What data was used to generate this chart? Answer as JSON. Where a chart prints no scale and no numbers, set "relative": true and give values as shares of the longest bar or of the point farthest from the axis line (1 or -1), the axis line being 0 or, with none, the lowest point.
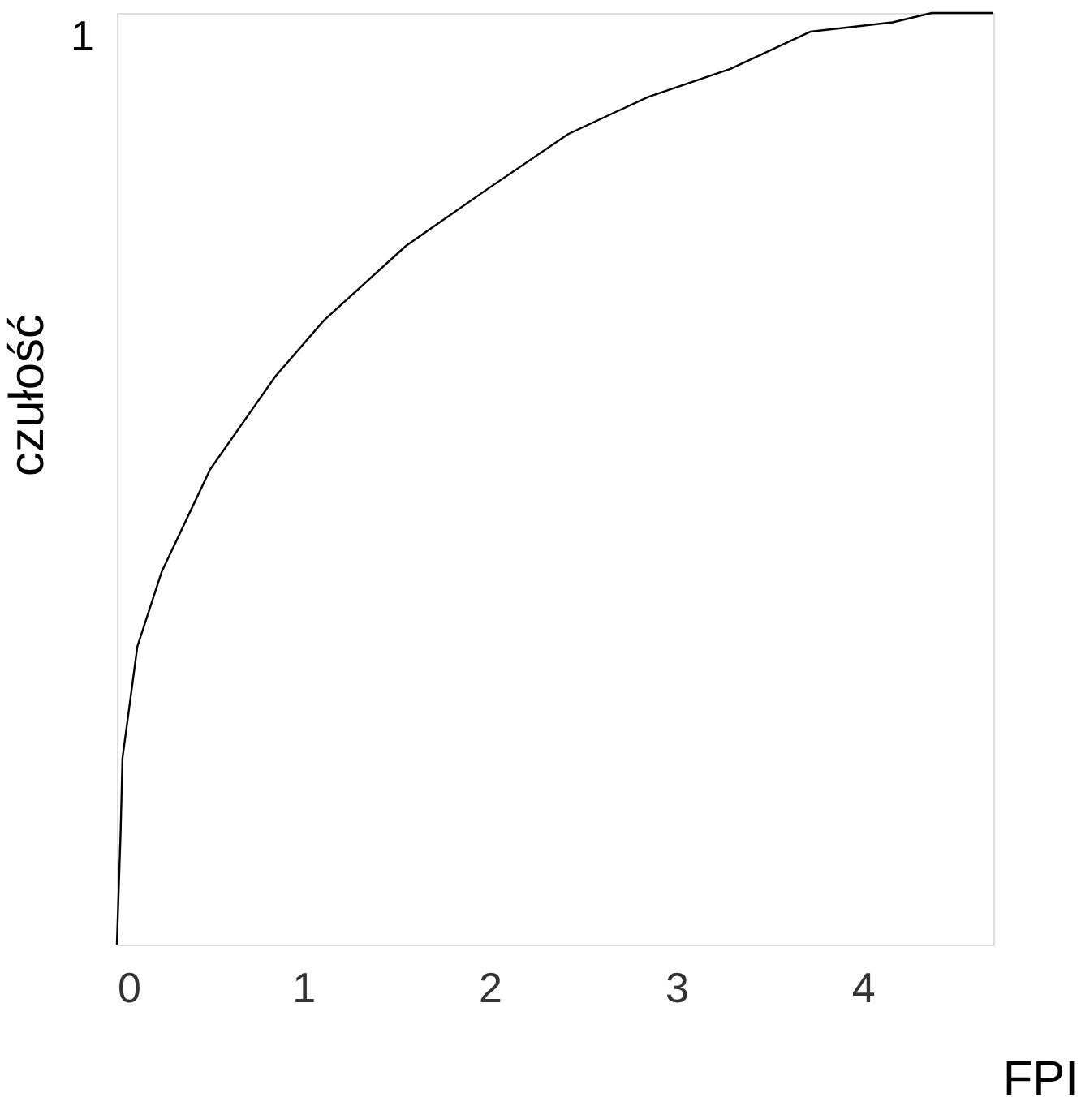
{
  "chart_data": {
    "type": "line",
    "xlabel": "FPI",
    "ylabel": "czułość",
    "x": [
      0,
      0.02,
      0.03,
      0.11,
      0.24,
      0.5,
      0.85,
      1.11,
      1.55,
      1.98,
      2.42,
      2.85,
      3.29,
      3.72,
      4.16,
      4.37,
      4.7
    ],
    "series": [
      {
        "color": "#000000",
        "values": [
          0,
          0.12,
          0.2,
          0.32,
          0.4,
          0.51,
          0.61,
          0.67,
          0.75,
          0.81,
          0.87,
          0.91,
          0.94,
          0.98,
          0.99,
          1.0,
          1.0
        ]
      }
    ],
    "xlim": [
      0,
      4.7
    ],
    "xticks": [
      0,
      1,
      2,
      3,
      4
    ],
    "relative": true,
    "annotations": [
      "1"
    ],
    "grid": false,
    "marker": "none",
    "line_style": "solid"
  }
}
